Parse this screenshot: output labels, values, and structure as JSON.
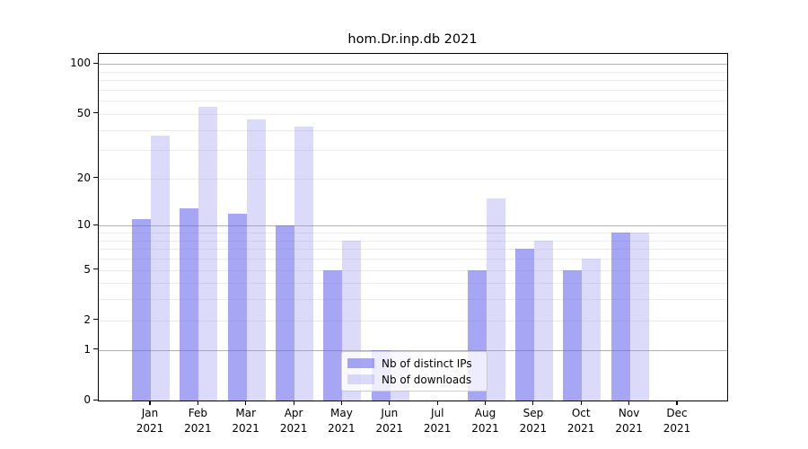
{
  "title": "hom.Dr.inp.db 2021",
  "year_label": "2021",
  "chart_data": {
    "type": "bar",
    "title": "hom.Dr.inp.db 2021",
    "categories": [
      "Jan 2021",
      "Feb 2021",
      "Mar 2021",
      "Apr 2021",
      "May 2021",
      "Jun 2021",
      "Jul 2021",
      "Aug 2021",
      "Sep 2021",
      "Oct 2021",
      "Nov 2021",
      "Dec 2021"
    ],
    "month_abbrevs": [
      "Jan",
      "Feb",
      "Mar",
      "Apr",
      "May",
      "Jun",
      "Jul",
      "Aug",
      "Sep",
      "Oct",
      "Nov",
      "Dec"
    ],
    "series": [
      {
        "name": "Nb of distinct IPs",
        "color_hex": "#a6a6f5",
        "color_rgba": "rgba(102,102,238,0.58)",
        "values": [
          11,
          13,
          12,
          10,
          5,
          1,
          0,
          5,
          7,
          5,
          9,
          0
        ]
      },
      {
        "name": "Nb of downloads",
        "color_hex": "#dbdbf9",
        "color_rgba": "rgba(153,153,238,0.35)",
        "values": [
          37,
          55,
          46,
          42,
          8,
          1,
          0,
          15,
          8,
          6,
          9,
          0
        ]
      }
    ],
    "yscale": "log1p",
    "yticks": [
      0,
      1,
      2,
      5,
      10,
      20,
      50,
      100
    ],
    "ylim": [
      0,
      116
    ],
    "xlabel": "",
    "ylabel": "",
    "grid": true,
    "major_grid_values": [
      1,
      10,
      100
    ],
    "minor_grid_values": [
      2,
      3,
      4,
      5,
      6,
      7,
      8,
      9,
      20,
      30,
      40,
      50,
      60,
      70,
      80,
      90
    ],
    "legend_position": "lower center",
    "colors": {
      "axis": "#000000",
      "major_grid": "#b0b0b0",
      "minor_grid": "#ebebeb",
      "background": "#ffffff",
      "legend_border": "#cccccc"
    }
  },
  "legend": {
    "items": [
      {
        "label": "Nb of distinct IPs"
      },
      {
        "label": "Nb of downloads"
      }
    ]
  }
}
